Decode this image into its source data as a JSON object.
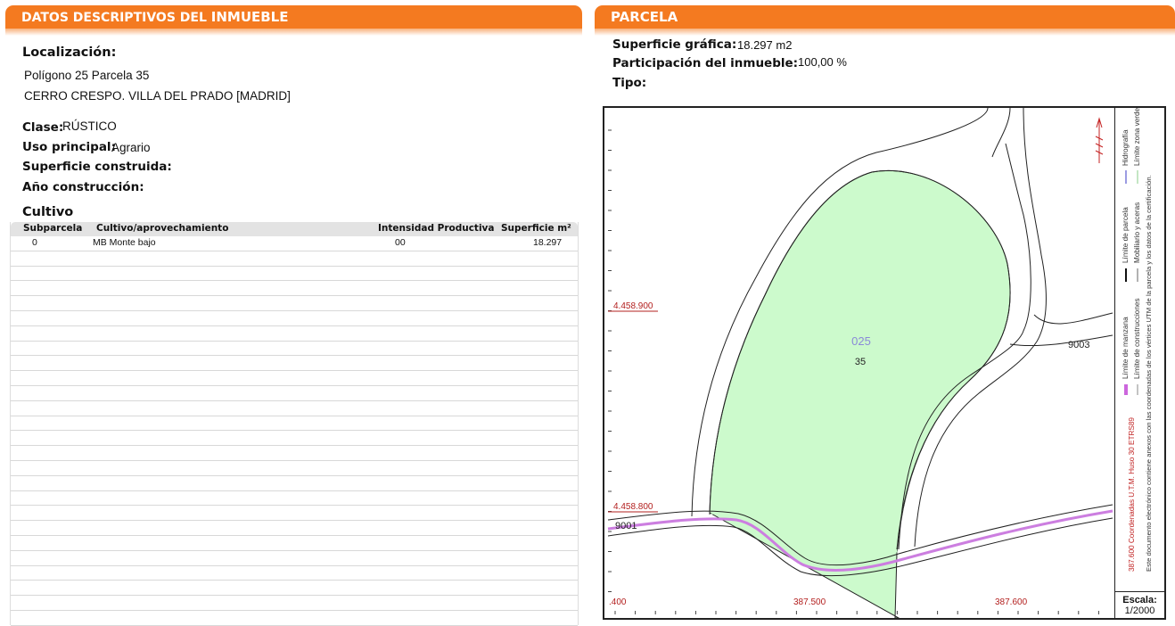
{
  "left": {
    "header_prefix": "DATOS DESCRIPTIVOS DEL",
    "header_bold": "INMUEBLE",
    "localizacion_label": "Localización:",
    "localizacion_line1": "Polígono 25 Parcela 35",
    "localizacion_line2": "CERRO CRESPO. VILLA DEL PRADO [MADRID]",
    "clase_label": "Clase:",
    "clase_value": "RÚSTICO",
    "uso_label": "Uso principal:",
    "uso_value": "Agrario",
    "sup_construida_label": "Superficie construida:",
    "anio_label": "Año construcción:",
    "cultivo_title": "Cultivo",
    "table": {
      "headers": [
        "Subparcela",
        "Cultivo/aprovechamiento",
        "Intensidad Productiva",
        "Superficie m²"
      ],
      "rows": [
        [
          "0",
          "MB Monte bajo",
          "00",
          "18.297"
        ]
      ]
    }
  },
  "right": {
    "header": "PARCELA",
    "sup_grafica_label": "Superficie gráfica:",
    "sup_grafica_value": "18.297 m2",
    "participacion_label": "Participación del inmueble:",
    "participacion_value": "100,00 %",
    "tipo_label": "Tipo:",
    "map": {
      "poligono": "025",
      "parcela": "35",
      "road_a": "9001",
      "road_b": "9003",
      "coord_y_upper": "4.458.900",
      "coord_y_lower": "4.458.800",
      "coord_x_left": ".400",
      "coord_x_mid": "387.500",
      "coord_x_right": "387.600",
      "north_icon": "north-arrow-icon"
    },
    "legend": {
      "hidrografia": "Hidrografía",
      "limite_zona_verde": "Límite zona verde",
      "limite_parcela": "Límite de parcela",
      "mobiliario": "Mobiliario y aceras",
      "limite_manzana": "Límite de manzana",
      "limite_construcciones": "Límite de construcciones",
      "coordenadas": "387.600 Coordenadas U.T.M. Huso 30 ETRS89",
      "nota": "Este documento electrónico contiene anexos con las coordenadas de los vértices UTM de la parcela y los datos de la certificación."
    },
    "scale_label": "Escala:",
    "scale_value": "1/2000"
  }
}
